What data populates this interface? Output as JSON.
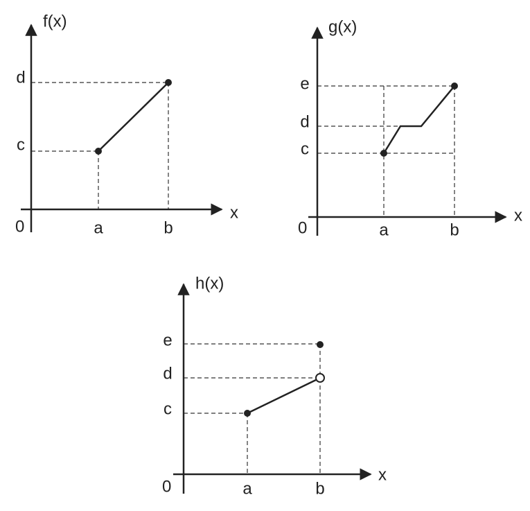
{
  "graphs": [
    {
      "y_label": "f(x)",
      "x_label": "x",
      "origin": "0",
      "x_ticks": [
        "a",
        "b"
      ],
      "y_ticks": [
        "c",
        "d"
      ]
    },
    {
      "y_label": "g(x)",
      "x_label": "x",
      "origin": "0",
      "x_ticks": [
        "a",
        "b"
      ],
      "y_ticks": [
        "c",
        "d",
        "e"
      ]
    },
    {
      "y_label": "h(x)",
      "x_label": "x",
      "origin": "0",
      "x_ticks": [
        "a",
        "b"
      ],
      "y_ticks": [
        "c",
        "d",
        "e"
      ]
    }
  ]
}
